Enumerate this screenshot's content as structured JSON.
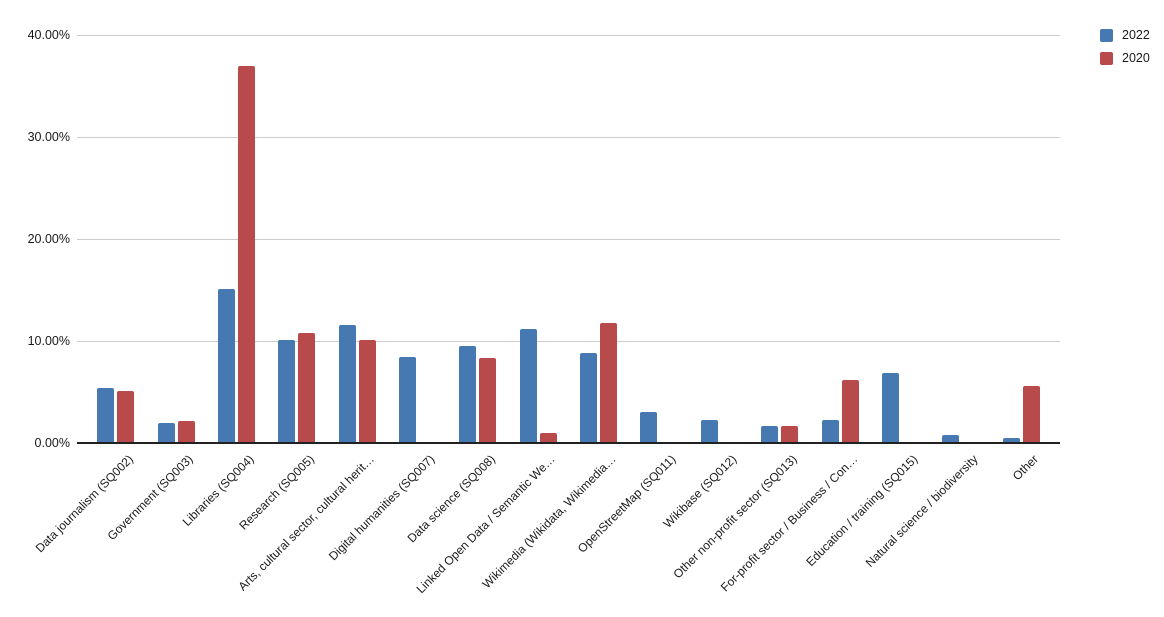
{
  "chart_data": {
    "type": "bar",
    "title": "",
    "xlabel": "",
    "ylabel": "",
    "ylim": [
      0,
      40
    ],
    "grid": true,
    "legend_position": "top-right",
    "categories": [
      "Data journalism (SQ002)",
      "Government (SQ003)",
      "Libraries (SQ004)",
      "Research (SQ005)",
      "Arts, cultural sector, cultural herit…",
      "Digital humanities (SQ007)",
      "Data science (SQ008)",
      "Linked Open Data / Semantic We…",
      "Wikimedia (Wikidata, Wikimedia…",
      "OpenStreetMap (SQ011)",
      "Wikibase (SQ012)",
      "Other non-profit sector (SQ013)",
      "For-profit sector / Business / Con…",
      "Education / training (SQ015)",
      "Natural science / biodiversity",
      "Other"
    ],
    "series": [
      {
        "name": "2022",
        "color": "#4678b2",
        "values": [
          5.4,
          2.0,
          15.1,
          10.1,
          11.6,
          8.4,
          9.5,
          11.2,
          8.8,
          3.0,
          2.3,
          1.7,
          2.3,
          6.9,
          0.8,
          0.5
        ]
      },
      {
        "name": "2020",
        "color": "#b84a4b",
        "values": [
          5.1,
          2.2,
          37.0,
          10.8,
          10.1,
          0,
          8.3,
          1.0,
          11.8,
          0,
          0,
          1.7,
          6.2,
          0,
          0,
          5.6
        ]
      }
    ],
    "yticks": [
      {
        "value": 0,
        "label": "0.00%"
      },
      {
        "value": 10,
        "label": "10.00%"
      },
      {
        "value": 20,
        "label": "20.00%"
      },
      {
        "value": 30,
        "label": "30.00%"
      },
      {
        "value": 40,
        "label": "40.00%"
      }
    ]
  },
  "colors": {
    "background": "#ffffff",
    "gridline": "#cccccc",
    "axis": "#212121",
    "text": "#1a1a1a"
  }
}
